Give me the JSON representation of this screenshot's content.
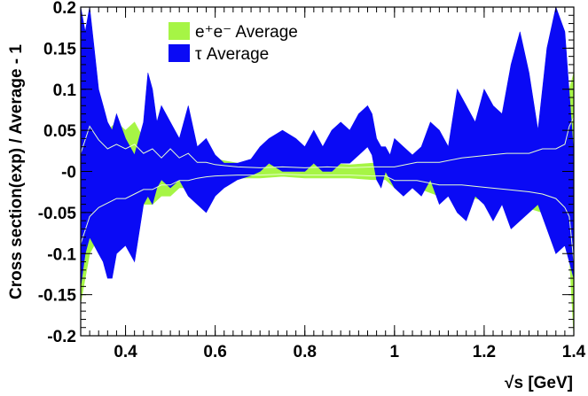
{
  "chart_data": {
    "type": "area",
    "xlabel": "√s   [GeV]",
    "ylabel": "Cross section(exp) / Average - 1",
    "xlim": [
      0.3,
      1.4
    ],
    "ylim": [
      -0.2,
      0.2
    ],
    "x_ticks": [
      {
        "value": 0.4,
        "label": "0.4"
      },
      {
        "value": 0.6,
        "label": "0.6"
      },
      {
        "value": 0.8,
        "label": "0.8"
      },
      {
        "value": 1.0,
        "label": "1"
      },
      {
        "value": 1.2,
        "label": "1.2"
      },
      {
        "value": 1.4,
        "label": "1.4"
      }
    ],
    "y_ticks": [
      {
        "value": 0.2,
        "label": "0.2"
      },
      {
        "value": 0.15,
        "label": "0.15"
      },
      {
        "value": 0.1,
        "label": "0.1"
      },
      {
        "value": 0.05,
        "label": "0.05"
      },
      {
        "value": 0.0,
        "label": "-0"
      },
      {
        "value": -0.05,
        "label": "-0.05"
      },
      {
        "value": -0.1,
        "label": "-0.1"
      },
      {
        "value": -0.15,
        "label": "-0.15"
      },
      {
        "value": -0.2,
        "label": "-0.2"
      }
    ],
    "legend_position": "top-center",
    "series": [
      {
        "name": "e⁺e⁻ Average",
        "color": "#a6f545",
        "x": [
          0.3,
          0.32,
          0.34,
          0.36,
          0.38,
          0.4,
          0.42,
          0.44,
          0.46,
          0.48,
          0.5,
          0.52,
          0.54,
          0.56,
          0.58,
          0.6,
          0.65,
          0.7,
          0.75,
          0.8,
          0.85,
          0.9,
          0.95,
          0.98,
          1.0,
          1.05,
          1.1,
          1.15,
          1.2,
          1.25,
          1.3,
          1.33,
          1.36,
          1.38,
          1.39,
          1.4
        ],
        "upper": [
          0.04,
          0.1,
          0.07,
          0.05,
          0.06,
          0.05,
          0.06,
          0.04,
          0.05,
          0.03,
          0.05,
          0.03,
          0.04,
          0.02,
          0.02,
          0.015,
          0.01,
          0.008,
          0.01,
          0.008,
          0.01,
          0.008,
          0.01,
          0.01,
          0.01,
          0.02,
          0.02,
          0.03,
          0.035,
          0.04,
          0.04,
          0.05,
          0.05,
          0.06,
          0.1,
          0.12
        ],
        "lower": [
          -0.16,
          -0.1,
          -0.08,
          -0.07,
          -0.06,
          -0.06,
          -0.05,
          -0.04,
          -0.04,
          -0.03,
          -0.03,
          -0.02,
          -0.02,
          -0.015,
          -0.012,
          -0.01,
          -0.008,
          -0.008,
          -0.006,
          -0.008,
          -0.008,
          -0.008,
          -0.01,
          -0.01,
          -0.02,
          -0.02,
          -0.03,
          -0.03,
          -0.035,
          -0.04,
          -0.045,
          -0.05,
          -0.06,
          -0.08,
          -0.1,
          -0.2
        ]
      },
      {
        "name": "τ Average",
        "color": "#0a0af5",
        "x": [
          0.3,
          0.31,
          0.32,
          0.33,
          0.34,
          0.35,
          0.36,
          0.37,
          0.38,
          0.4,
          0.42,
          0.44,
          0.45,
          0.46,
          0.47,
          0.48,
          0.5,
          0.52,
          0.54,
          0.56,
          0.58,
          0.6,
          0.62,
          0.65,
          0.68,
          0.7,
          0.72,
          0.75,
          0.78,
          0.8,
          0.82,
          0.84,
          0.86,
          0.88,
          0.9,
          0.92,
          0.94,
          0.95,
          0.96,
          0.97,
          0.98,
          0.99,
          1.0,
          1.02,
          1.04,
          1.06,
          1.08,
          1.1,
          1.12,
          1.14,
          1.16,
          1.18,
          1.2,
          1.22,
          1.24,
          1.26,
          1.28,
          1.3,
          1.32,
          1.34,
          1.36,
          1.38,
          1.4
        ],
        "upper": [
          0.2,
          0.17,
          0.2,
          0.15,
          0.1,
          0.08,
          0.06,
          0.05,
          0.07,
          0.04,
          0.02,
          0.06,
          0.12,
          0.1,
          0.06,
          0.08,
          0.06,
          0.04,
          0.08,
          0.03,
          0.04,
          0.02,
          0.01,
          0.01,
          0.015,
          0.03,
          0.04,
          0.05,
          0.04,
          0.03,
          0.05,
          0.03,
          0.05,
          0.06,
          0.05,
          0.07,
          0.08,
          0.07,
          0.04,
          0.03,
          0.03,
          0.02,
          0.04,
          0.03,
          0.02,
          0.03,
          0.06,
          0.05,
          0.03,
          0.1,
          0.08,
          0.06,
          0.1,
          0.08,
          0.07,
          0.13,
          0.17,
          0.12,
          0.05,
          0.15,
          0.2,
          0.17,
          0.02
        ],
        "lower": [
          -0.14,
          -0.1,
          -0.08,
          -0.09,
          -0.1,
          -0.11,
          -0.13,
          -0.13,
          -0.1,
          -0.09,
          -0.11,
          -0.04,
          -0.03,
          -0.04,
          -0.02,
          -0.01,
          -0.02,
          -0.01,
          -0.03,
          -0.04,
          -0.05,
          -0.03,
          -0.02,
          -0.01,
          -0.005,
          0.0,
          0.01,
          0.0,
          0.0,
          0.0,
          0.01,
          0.0,
          0.0,
          0.01,
          0.01,
          0.02,
          0.03,
          0.02,
          -0.01,
          -0.02,
          0.0,
          -0.01,
          -0.02,
          -0.03,
          -0.02,
          -0.03,
          -0.01,
          -0.04,
          -0.03,
          -0.05,
          -0.06,
          -0.03,
          -0.04,
          -0.06,
          -0.04,
          -0.07,
          -0.06,
          -0.05,
          -0.04,
          -0.07,
          -0.1,
          -0.09,
          -0.13
        ]
      }
    ]
  }
}
